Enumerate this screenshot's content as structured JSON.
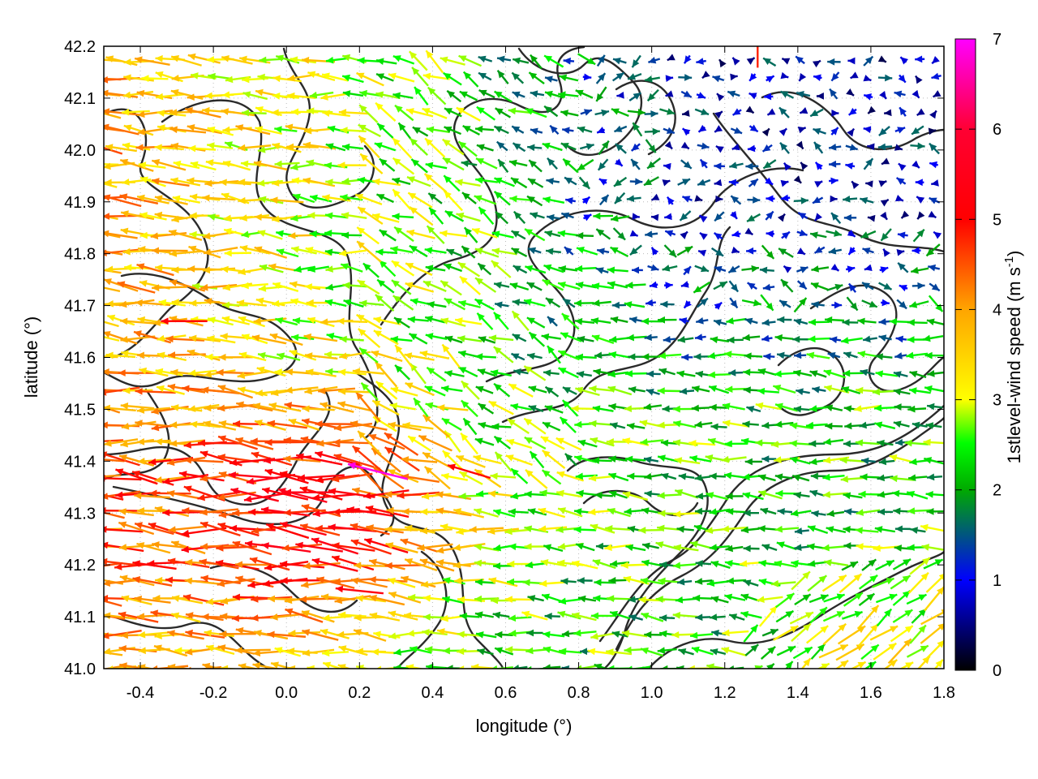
{
  "chart_data": {
    "type": "vector-field",
    "xlabel": "longitude (°)",
    "ylabel": "latitude (°)",
    "xlim": [
      -0.5,
      1.8
    ],
    "ylim": [
      41.0,
      42.2
    ],
    "x_ticks": [
      "-0.4",
      "-0.2",
      "0.0",
      "0.2",
      "0.4",
      "0.6",
      "0.8",
      "1.0",
      "1.2",
      "1.4",
      "1.6",
      "1.8"
    ],
    "y_ticks": [
      "41.0",
      "41.1",
      "41.2",
      "41.3",
      "41.4",
      "41.5",
      "41.6",
      "41.7",
      "41.8",
      "41.9",
      "42.0",
      "42.1",
      "42.2"
    ],
    "grid": true,
    "colorbar": {
      "label": "1stlevel-wind speed (m s",
      "label_sup": "-1",
      "label_close": ")",
      "range": [
        0,
        7
      ],
      "ticks": [
        "0",
        "1",
        "2",
        "3",
        "4",
        "5",
        "6",
        "7"
      ],
      "palette": [
        "#000000",
        "#0000ff",
        "#00aa00",
        "#00ff00",
        "#ffff00",
        "#ffa500",
        "#ff0000",
        "#ff00ff"
      ]
    },
    "wind_field_description": "Predominantly westward/north-westward flow; strongest winds (4-7 m/s) in the south-west between lon -0.5 and 0.5, lat 41.1-41.5; weak winds (0-2 m/s) in the north-east; 3-4 m/s north-eastward flow in the south-east corner",
    "notable_vectors": [
      {
        "lon": 0.25,
        "lat": 41.38,
        "u": -2.0,
        "v": 0.5,
        "speed": 6.9
      },
      {
        "lon": 0.06,
        "lat": 41.34,
        "u": -1.8,
        "v": 0.0,
        "speed": 5.5
      },
      {
        "lon": 0.2,
        "lat": 41.15,
        "u": -1.9,
        "v": 0.2,
        "speed": 5.4
      },
      {
        "lon": -0.28,
        "lat": 41.67,
        "u": -1.5,
        "v": 0.0,
        "speed": 5.2
      },
      {
        "lon": 0.5,
        "lat": 41.38,
        "u": -1.0,
        "v": 0.3,
        "speed": 5.0
      },
      {
        "lon": 1.29,
        "lat": 42.2,
        "u": 0.0,
        "v": 0.4,
        "speed": 4.8
      }
    ]
  }
}
